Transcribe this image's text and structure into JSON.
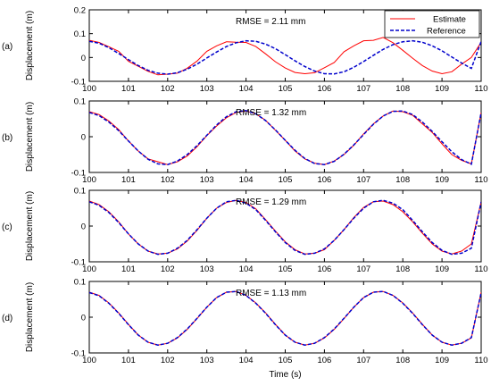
{
  "chart_data": {
    "type": "line",
    "xlabel": "Time (s)",
    "xlim": [
      100,
      110
    ],
    "xticks": [
      "100",
      "101",
      "102",
      "103",
      "104",
      "105",
      "106",
      "107",
      "108",
      "109",
      "110"
    ],
    "colors": {
      "estimate": "#ff0000",
      "reference": "#0000cc"
    },
    "legend": {
      "placement": "top-right",
      "entries": [
        "Estimate",
        "Reference"
      ]
    },
    "x": [
      100.0,
      100.25,
      100.5,
      100.75,
      101.0,
      101.25,
      101.5,
      101.75,
      102.0,
      102.25,
      102.5,
      102.75,
      103.0,
      103.25,
      103.5,
      103.75,
      104.0,
      104.25,
      104.5,
      104.75,
      105.0,
      105.25,
      105.5,
      105.75,
      106.0,
      106.25,
      106.5,
      106.75,
      107.0,
      107.25,
      107.5,
      107.75,
      108.0,
      108.25,
      108.5,
      108.75,
      109.0,
      109.25,
      109.5,
      109.75,
      110.0
    ],
    "panels": [
      {
        "tag": "(a)",
        "ylabel": "Displacement (m)",
        "ylim": [
          -0.1,
          0.2
        ],
        "yticks": [
          "-0.1",
          "0",
          "0.1",
          "0.2"
        ],
        "annotation": "RMSE = 2.11 mm",
        "series": [
          {
            "name": "Estimate",
            "values": [
              0.072,
              0.063,
              0.045,
              0.026,
              -0.016,
              -0.037,
              -0.058,
              -0.073,
              -0.07,
              -0.066,
              -0.045,
              -0.015,
              0.026,
              0.049,
              0.066,
              0.064,
              0.063,
              0.046,
              0.015,
              -0.018,
              -0.044,
              -0.063,
              -0.068,
              -0.064,
              -0.043,
              -0.021,
              0.024,
              0.049,
              0.07,
              0.072,
              0.084,
              0.062,
              0.03,
              -0.003,
              -0.034,
              -0.057,
              -0.068,
              -0.06,
              -0.028,
              0.0,
              0.064
            ]
          },
          {
            "name": "Reference",
            "values": [
              0.068,
              0.06,
              0.041,
              0.017,
              -0.009,
              -0.034,
              -0.054,
              -0.066,
              -0.07,
              -0.064,
              -0.049,
              -0.028,
              -0.002,
              0.023,
              0.046,
              0.062,
              0.07,
              0.068,
              0.056,
              0.037,
              0.012,
              -0.014,
              -0.038,
              -0.057,
              -0.068,
              -0.069,
              -0.06,
              -0.041,
              -0.017,
              0.009,
              0.034,
              0.054,
              0.066,
              0.07,
              0.064,
              0.049,
              0.028,
              0.002,
              -0.023,
              -0.046,
              0.068
            ]
          }
        ]
      },
      {
        "tag": "(b)",
        "ylabel": "Displacement (m)",
        "ylim": [
          -0.1,
          0.1
        ],
        "yticks": [
          "-0.1",
          "0",
          "0.1"
        ],
        "annotation": "RMSE = 1.32 mm",
        "series": [
          {
            "name": "Estimate",
            "values": [
              0.07,
              0.062,
              0.044,
              0.02,
              -0.012,
              -0.04,
              -0.062,
              -0.07,
              -0.078,
              -0.07,
              -0.054,
              -0.028,
              0.003,
              0.03,
              0.053,
              0.068,
              0.072,
              0.064,
              0.046,
              0.018,
              -0.01,
              -0.04,
              -0.062,
              -0.074,
              -0.078,
              -0.068,
              -0.05,
              -0.024,
              0.008,
              0.036,
              0.058,
              0.072,
              0.07,
              0.06,
              0.036,
              0.012,
              -0.02,
              -0.05,
              -0.066,
              -0.076,
              0.068
            ]
          },
          {
            "name": "Reference",
            "values": [
              0.068,
              0.059,
              0.041,
              0.017,
              -0.012,
              -0.04,
              -0.063,
              -0.076,
              -0.078,
              -0.068,
              -0.05,
              -0.025,
              0.004,
              0.033,
              0.056,
              0.07,
              0.073,
              0.064,
              0.045,
              0.019,
              -0.01,
              -0.038,
              -0.061,
              -0.075,
              -0.078,
              -0.069,
              -0.049,
              -0.023,
              0.006,
              0.035,
              0.058,
              0.071,
              0.072,
              0.062,
              0.041,
              0.015,
              -0.014,
              -0.042,
              -0.064,
              -0.077,
              0.068
            ]
          }
        ]
      },
      {
        "tag": "(c)",
        "ylabel": "Displacement (m)",
        "ylim": [
          -0.1,
          0.1
        ],
        "yticks": [
          "-0.1",
          "0",
          "0.1"
        ],
        "annotation": "RMSE = 1.29 mm",
        "series": [
          {
            "name": "Estimate",
            "values": [
              0.07,
              0.06,
              0.04,
              0.012,
              -0.022,
              -0.05,
              -0.07,
              -0.078,
              -0.076,
              -0.064,
              -0.042,
              -0.012,
              0.022,
              0.05,
              0.066,
              0.072,
              0.066,
              0.048,
              0.018,
              -0.014,
              -0.044,
              -0.066,
              -0.078,
              -0.076,
              -0.066,
              -0.04,
              -0.01,
              0.024,
              0.052,
              0.068,
              0.07,
              0.06,
              0.04,
              0.012,
              -0.02,
              -0.05,
              -0.07,
              -0.078,
              -0.07,
              -0.05,
              0.068
            ]
          },
          {
            "name": "Reference",
            "values": [
              0.068,
              0.058,
              0.038,
              0.01,
              -0.022,
              -0.05,
              -0.07,
              -0.079,
              -0.076,
              -0.062,
              -0.04,
              -0.01,
              0.022,
              0.05,
              0.068,
              0.072,
              0.064,
              0.046,
              0.016,
              -0.016,
              -0.046,
              -0.068,
              -0.079,
              -0.076,
              -0.064,
              -0.04,
              -0.01,
              0.022,
              0.05,
              0.068,
              0.072,
              0.064,
              0.046,
              0.016,
              -0.016,
              -0.046,
              -0.068,
              -0.079,
              -0.076,
              -0.062,
              0.068
            ]
          }
        ]
      },
      {
        "tag": "(d)",
        "ylabel": "Displacement (m)",
        "ylim": [
          -0.1,
          0.1
        ],
        "yticks": [
          "-0.1",
          "0",
          "0.1"
        ],
        "annotation": "RMSE = 1.13 mm",
        "series": [
          {
            "name": "Estimate",
            "values": [
              0.07,
              0.061,
              0.04,
              0.012,
              -0.02,
              -0.05,
              -0.07,
              -0.078,
              -0.073,
              -0.058,
              -0.034,
              -0.004,
              0.028,
              0.055,
              0.07,
              0.072,
              0.061,
              0.04,
              0.012,
              -0.02,
              -0.05,
              -0.07,
              -0.078,
              -0.073,
              -0.058,
              -0.034,
              -0.004,
              0.028,
              0.055,
              0.07,
              0.072,
              0.061,
              0.04,
              0.012,
              -0.02,
              -0.05,
              -0.07,
              -0.078,
              -0.073,
              -0.058,
              0.07
            ]
          },
          {
            "name": "Reference",
            "values": [
              0.069,
              0.06,
              0.039,
              0.011,
              -0.021,
              -0.05,
              -0.07,
              -0.078,
              -0.073,
              -0.057,
              -0.033,
              -0.003,
              0.028,
              0.055,
              0.07,
              0.072,
              0.061,
              0.039,
              0.011,
              -0.021,
              -0.05,
              -0.07,
              -0.078,
              -0.073,
              -0.057,
              -0.033,
              -0.003,
              0.028,
              0.055,
              0.07,
              0.072,
              0.061,
              0.039,
              0.011,
              -0.021,
              -0.05,
              -0.07,
              -0.078,
              -0.073,
              -0.057,
              0.069
            ]
          }
        ]
      }
    ]
  }
}
